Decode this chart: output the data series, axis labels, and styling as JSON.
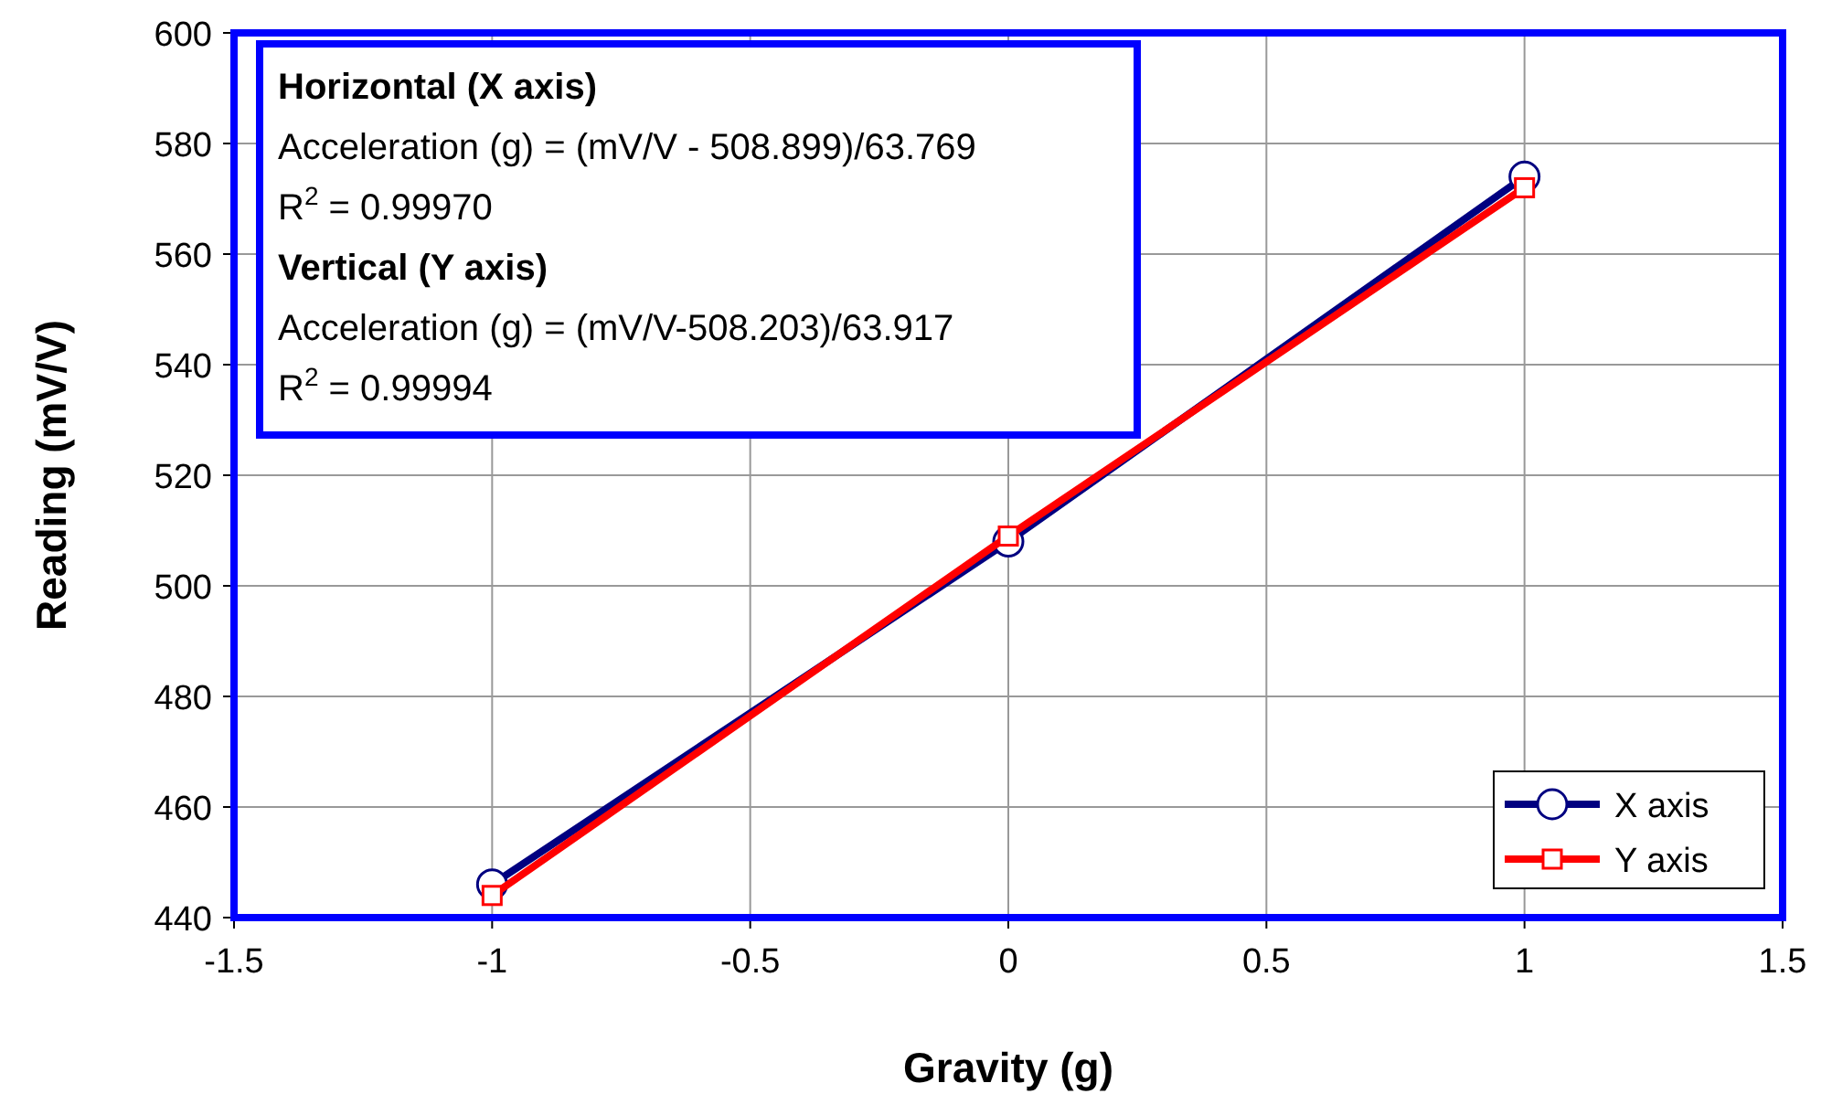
{
  "chart_data": {
    "type": "line",
    "xlabel": "Gravity (g)",
    "ylabel": "Reading (mV/V)",
    "x": [
      -1,
      0,
      1
    ],
    "series": [
      {
        "name": "X axis",
        "color": "#000080",
        "marker": "circle",
        "values": [
          446,
          508,
          574
        ]
      },
      {
        "name": "Y axis",
        "color": "#ff0000",
        "marker": "square",
        "values": [
          444,
          509,
          572
        ]
      }
    ],
    "xlim": [
      -1.5,
      1.5
    ],
    "xticks": [
      -1.5,
      -1,
      -0.5,
      0,
      0.5,
      1,
      1.5
    ],
    "ylim": [
      440,
      600
    ],
    "yticks": [
      440,
      460,
      480,
      500,
      520,
      540,
      560,
      580,
      600
    ],
    "grid": true,
    "legend": "bottom right",
    "line_style": "solid",
    "annotations": [
      "Horizontal (X axis)",
      "Acceleration (g) = (mV/V - 508.899)/63.769",
      "R$^{2}$ = 0.99970",
      "Vertical (Y axis)",
      "Acceleration (g) = (mV/V-508.203)/63.917",
      "R$^{2}$ = 0.99994"
    ]
  }
}
